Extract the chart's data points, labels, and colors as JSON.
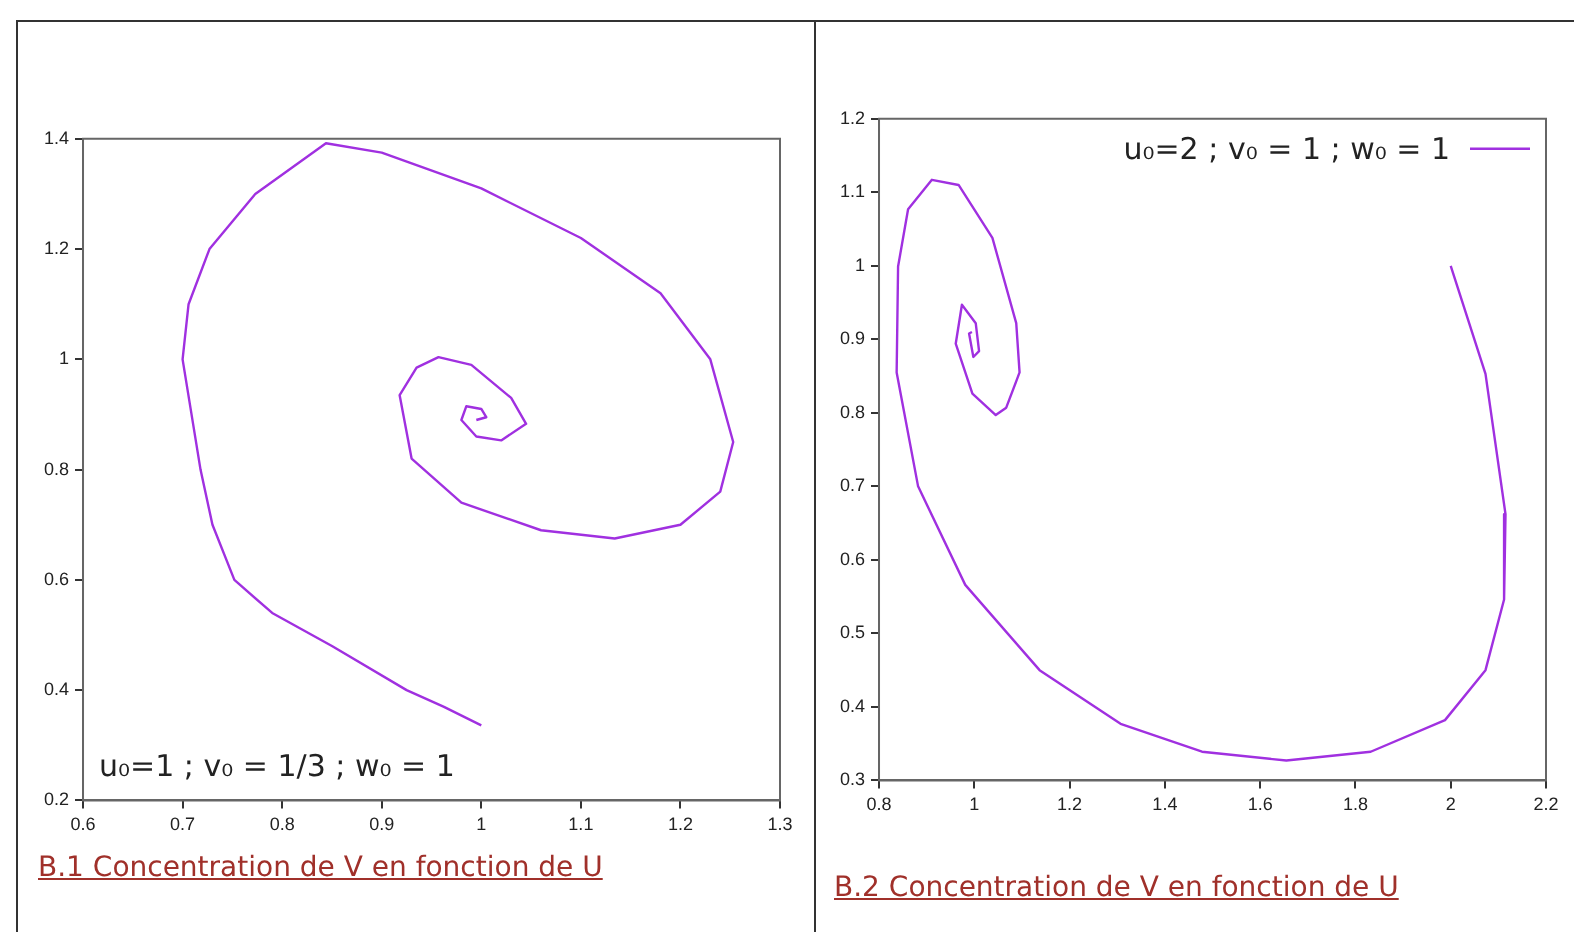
{
  "chart_data": [
    {
      "type": "line",
      "title": "B.1 Concentration de V en fonction de U",
      "annotations": [
        "u₀=1 ; v₀ = 1/3 ; w₀ = 1"
      ],
      "xlim": [
        0.6,
        1.3
      ],
      "xticks": [
        0.6,
        0.7,
        0.8,
        0.9,
        1,
        1.1,
        1.2,
        1.3
      ],
      "ylim": [
        0.2,
        1.4
      ],
      "yticks": [
        0.2,
        0.4,
        0.6,
        0.8,
        1,
        1.2,
        1.4
      ],
      "grid": false,
      "legend": false,
      "series": [
        {
          "color": "#a030e0",
          "x": [
            1,
            0.962,
            0.925,
            0.85,
            0.79,
            0.752,
            0.73,
            0.718,
            0.7,
            0.706,
            0.727,
            0.773,
            0.844,
            0.9,
            1,
            1.1,
            1.18,
            1.23,
            1.253,
            1.24,
            1.2,
            1.134,
            1.06,
            0.98,
            0.93,
            0.918,
            0.935,
            0.957,
            0.99,
            1.03,
            1.045,
            1.02,
            0.995,
            0.98,
            0.985,
            1,
            1.005,
            0.995
          ],
          "values": [
            0.336,
            0.37,
            0.4,
            0.48,
            0.54,
            0.6,
            0.7,
            0.8,
            1.0,
            1.1,
            1.2,
            1.3,
            1.392,
            1.375,
            1.31,
            1.22,
            1.12,
            1.0,
            0.85,
            0.76,
            0.7,
            0.675,
            0.69,
            0.74,
            0.82,
            0.935,
            0.985,
            1.004,
            0.99,
            0.93,
            0.883,
            0.853,
            0.86,
            0.89,
            0.915,
            0.91,
            0.895,
            0.89
          ]
        }
      ]
    },
    {
      "type": "line",
      "title": "B.2 Concentration de V en fonction de U",
      "legend": "top right",
      "xlim": [
        0.8,
        2.2
      ],
      "xticks": [
        0.8,
        1,
        1.2,
        1.4,
        1.6,
        1.8,
        2,
        2.2
      ],
      "ylim": [
        0.3,
        1.2
      ],
      "yticks": [
        0.3,
        0.4,
        0.5,
        0.6,
        0.7,
        0.8,
        0.9,
        1,
        1.1,
        1.2
      ],
      "grid": false,
      "series": [
        {
          "name": "u₀=2 ; v₀ = 1 ; w₀ = 1",
          "color": "#a030e0",
          "x": [
            2,
            2.073,
            2.115,
            2.112,
            2.073,
            1.988,
            1.832,
            1.655,
            1.478,
            1.307,
            1.137,
            0.981,
            0.882,
            0.837,
            0.84,
            0.861,
            0.911,
            0.967,
            1.038,
            1.088,
            1.095,
            1.067,
            1.045,
            0.996,
            0.961,
            0.974,
            1.003,
            1.01,
            0.998,
            0.989,
            0.995
          ],
          "values": [
            1,
            0.853,
            0.662,
            0.546,
            0.45,
            0.382,
            0.339,
            0.327,
            0.339,
            0.377,
            0.45,
            0.566,
            0.7,
            0.855,
            0.999,
            1.077,
            1.117,
            1.11,
            1.038,
            0.922,
            0.855,
            0.807,
            0.797,
            0.826,
            0.894,
            0.947,
            0.922,
            0.884,
            0.876,
            0.908,
            0.91
          ]
        }
      ]
    }
  ]
}
